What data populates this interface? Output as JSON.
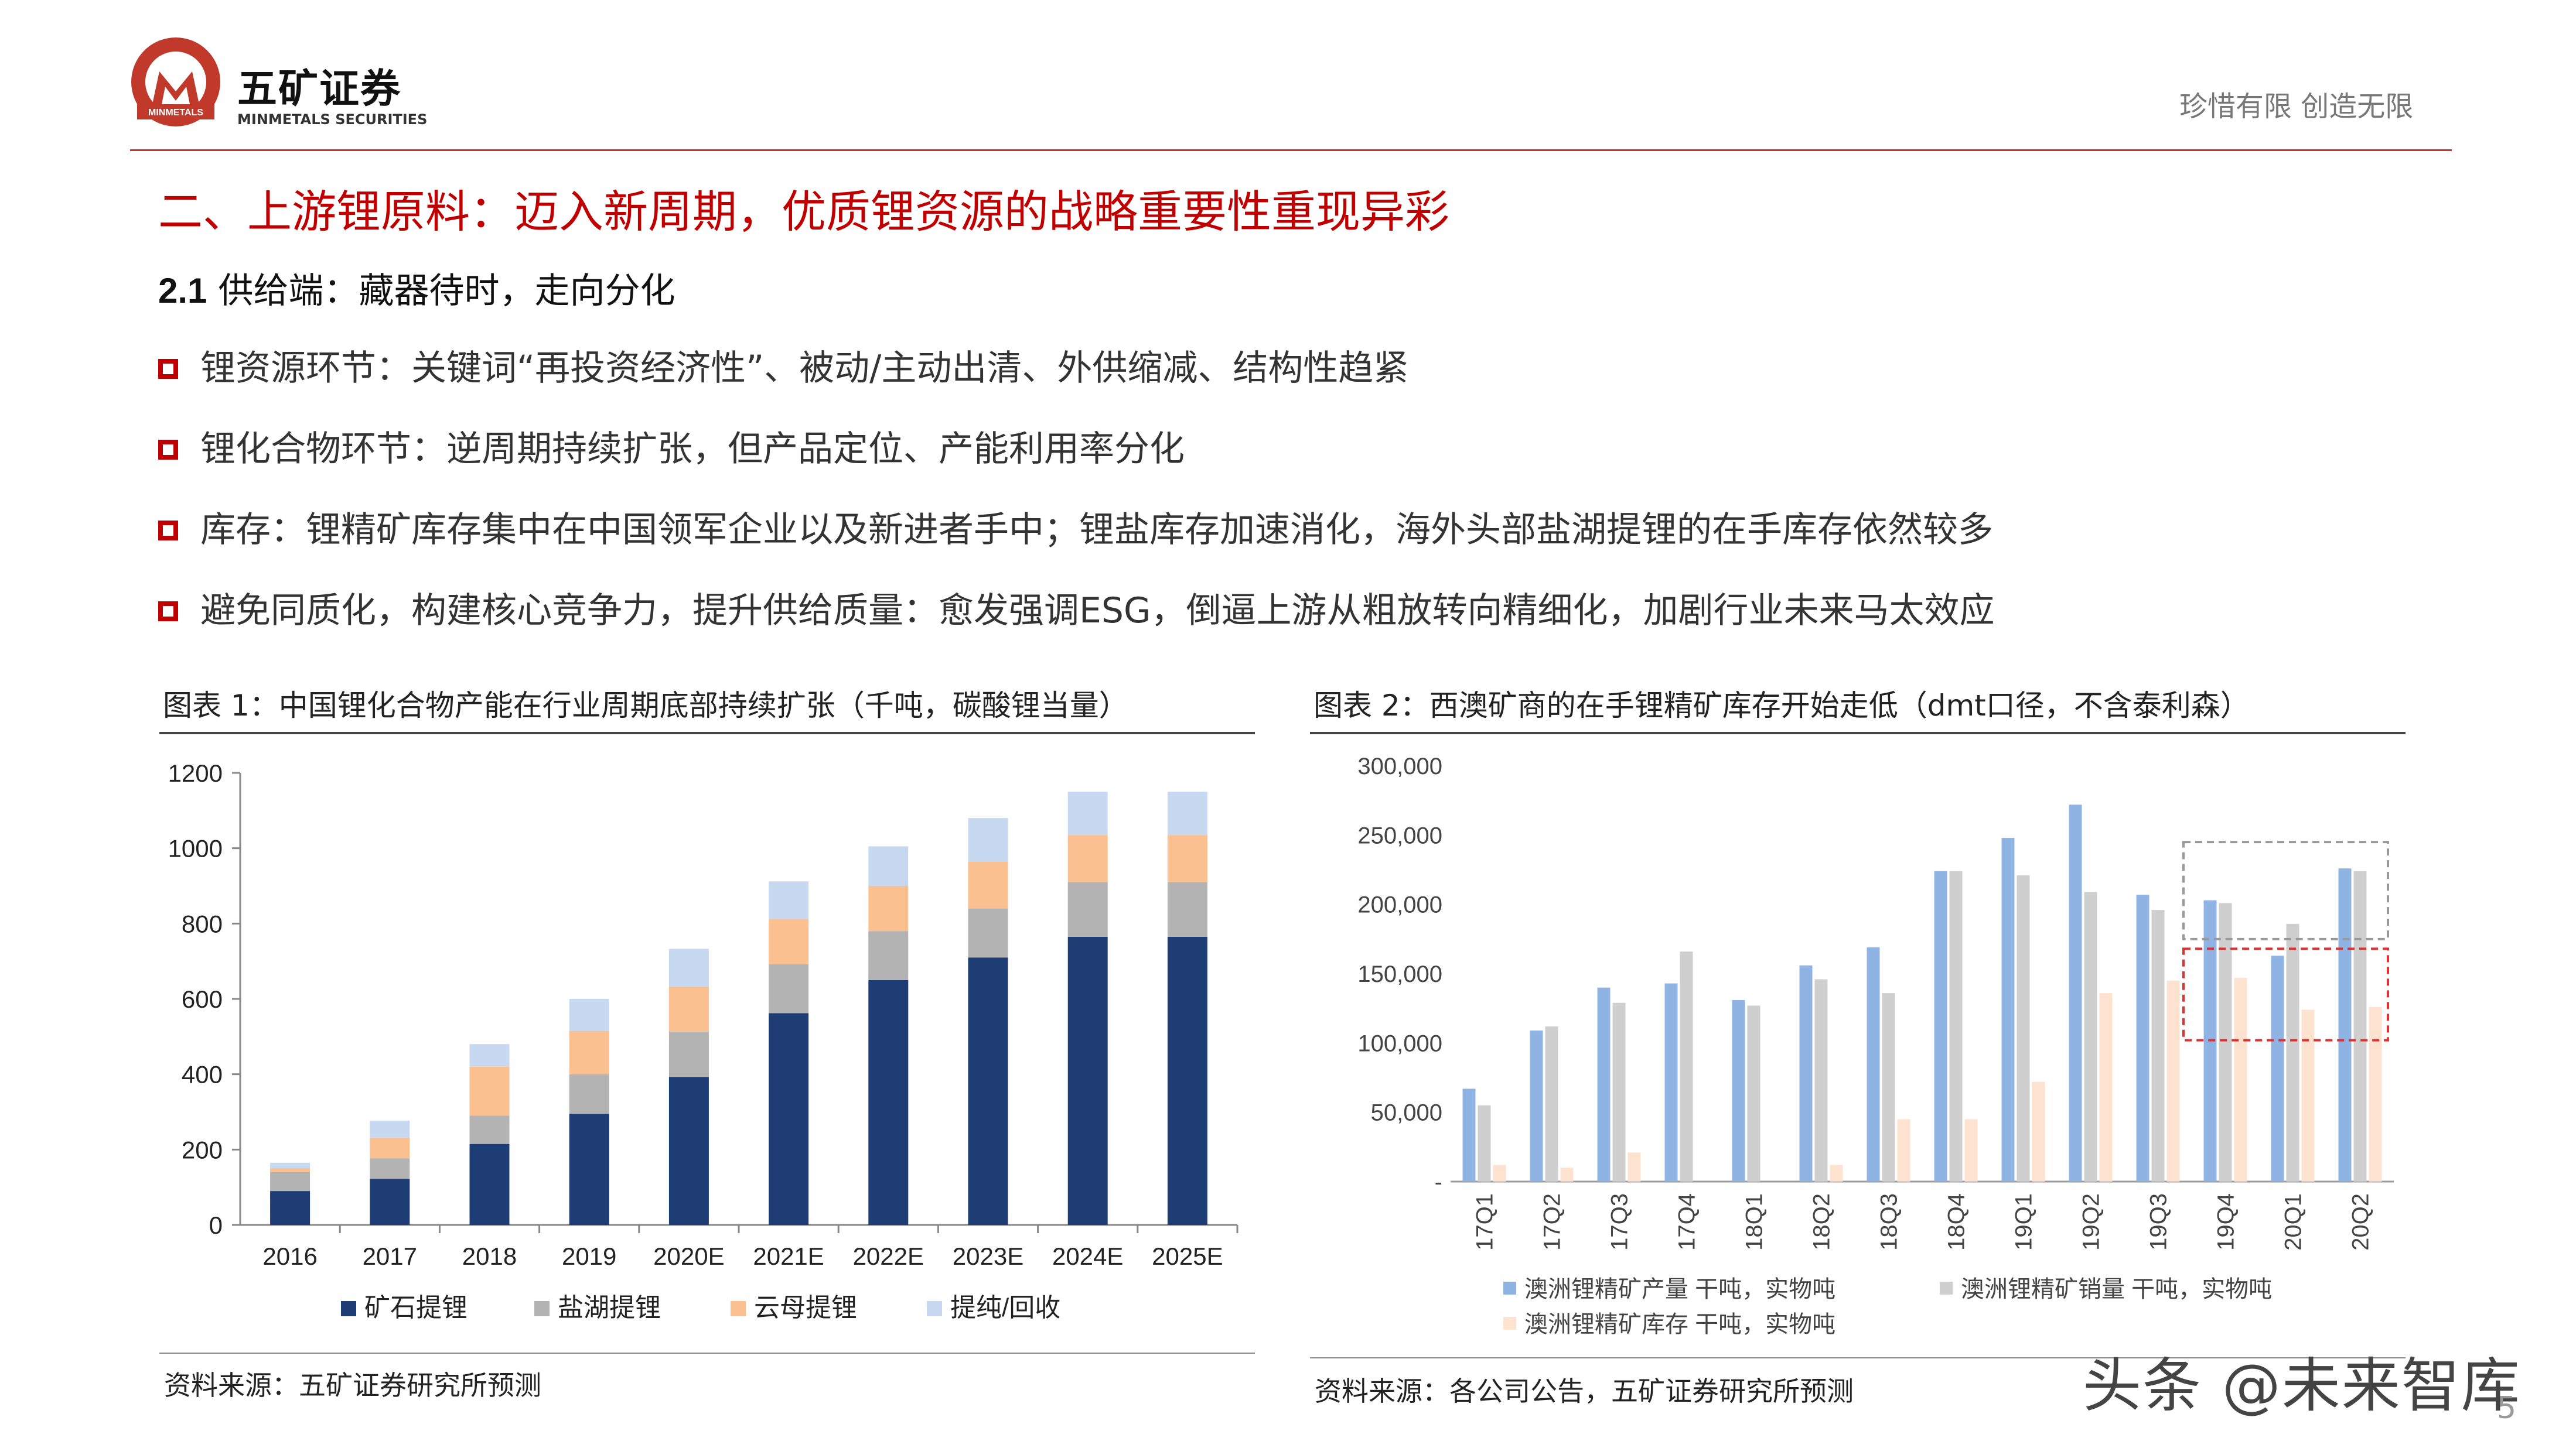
{
  "brand": {
    "name_cn": "五矿证券",
    "name_en": "MINMETALS SECURITIES",
    "slogan": "珍惜有限  创造无限",
    "logo_ring_text": "MINMETALS"
  },
  "colors": {
    "accent": "#c00000",
    "brand_red": "#c0392b"
  },
  "title": "二、上游锂原料：迈入新周期，优质锂资源的战略重要性重现异彩",
  "section": {
    "number": "2.1",
    "title": "供给端：藏器待时，走向分化"
  },
  "bullets": [
    "锂资源环节：关键词“再投资经济性”、被动/主动出清、外供缩减、结构性趋紧",
    "锂化合物环节：逆周期持续扩张，但产品定位、产能利用率分化",
    "库存：锂精矿库存集中在中国领军企业以及新进者手中；锂盐库存加速消化，海外头部盐湖提锂的在手库存依然较多",
    "避免同质化，构建核心竞争力，提升供给质量：愈发强调ESG，倒逼上游从粗放转向精细化，加剧行业未来马太效应"
  ],
  "figure1": {
    "title": "图表 1：中国锂化合物产能在行业周期底部持续扩张（千吨，碳酸锂当量）",
    "source": "资料来源：五矿证券研究所预测"
  },
  "figure2": {
    "title": "图表 2：西澳矿商的在手锂精矿库存开始走低（dmt口径，不含泰利森）",
    "source": "资料来源：各公司公告，五矿证券研究所预测"
  },
  "watermark": "头条 @未来智库",
  "page_number": "5",
  "chart_data": [
    {
      "type": "bar",
      "stacked": true,
      "categories": [
        "2016",
        "2017",
        "2018",
        "2019",
        "2020E",
        "2021E",
        "2022E",
        "2023E",
        "2024E",
        "2025E"
      ],
      "series": [
        {
          "name": "矿石提锂",
          "color": "#1f3d75",
          "values": [
            90,
            122,
            215,
            295,
            393,
            562,
            650,
            710,
            765,
            765
          ]
        },
        {
          "name": "盐湖提锂",
          "color": "#b3b3b3",
          "values": [
            50,
            55,
            75,
            105,
            120,
            130,
            130,
            130,
            145,
            145
          ]
        },
        {
          "name": "云母提锂",
          "color": "#fbc08f",
          "values": [
            10,
            55,
            130,
            115,
            120,
            120,
            120,
            125,
            125,
            125
          ]
        },
        {
          "name": "提纯/回收",
          "color": "#c6d9f1",
          "values": [
            15,
            45,
            60,
            85,
            100,
            100,
            105,
            115,
            115,
            115
          ]
        }
      ],
      "ylim": [
        0,
        1200
      ],
      "yticks": [
        0,
        200,
        400,
        600,
        800,
        1000,
        1200
      ],
      "legend": "bottom",
      "grid": false
    },
    {
      "type": "bar",
      "categories": [
        "17Q1",
        "17Q2",
        "17Q3",
        "17Q4",
        "18Q1",
        "18Q2",
        "18Q3",
        "18Q4",
        "19Q1",
        "19Q2",
        "19Q3",
        "19Q4",
        "20Q1",
        "20Q2"
      ],
      "series": [
        {
          "name": "澳洲锂精矿产量 干吨，实物吨",
          "color": "#8fb4e3",
          "values": [
            67000,
            109000,
            140000,
            143000,
            131000,
            156000,
            169000,
            224000,
            248000,
            272000,
            207000,
            203000,
            163000,
            226000
          ]
        },
        {
          "name": "澳洲锂精矿销量 干吨，实物吨",
          "color": "#cfcfcf",
          "values": [
            55000,
            112000,
            129000,
            166000,
            127000,
            146000,
            136000,
            224000,
            221000,
            209000,
            196000,
            201000,
            186000,
            224000
          ]
        },
        {
          "name": "澳洲锂精矿库存 干吨，实物吨",
          "color": "#fde3cf",
          "values": [
            12000,
            10000,
            21000,
            0,
            0,
            12000,
            45000,
            45000,
            72000,
            136000,
            145000,
            147000,
            124000,
            126000
          ]
        }
      ],
      "ylim": [
        0,
        300000
      ],
      "yticks": [
        "-",
        "50,000",
        "100,000",
        "150,000",
        "200,000",
        "250,000",
        "300,000"
      ],
      "legend": "bottom",
      "grid": false,
      "annotations": [
        "gray dashed box around 19Q4–20Q2 production/sales",
        "red dashed box around 19Q4–20Q2 inventory"
      ]
    }
  ]
}
